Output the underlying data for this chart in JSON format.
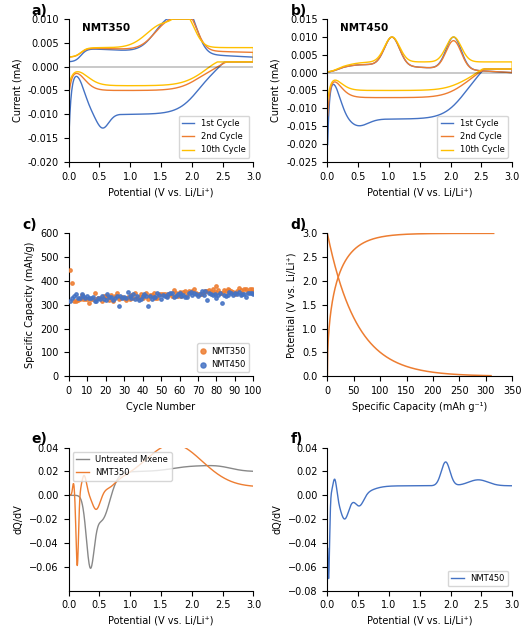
{
  "fig_width": 5.28,
  "fig_height": 6.35,
  "dpi": 100,
  "cv_colors": {
    "1st": "#4472C4",
    "2nd": "#ED7D31",
    "10th": "#FFC000"
  },
  "panel_a": {
    "title": "NMT350",
    "xlim": [
      0,
      3
    ],
    "ylim": [
      -0.02,
      0.01
    ],
    "yticks": [
      -0.02,
      -0.015,
      -0.01,
      -0.005,
      0.0,
      0.005,
      0.01
    ],
    "xlabel": "Potential (V vs. Li/Li⁺)",
    "ylabel": "Current (mA)"
  },
  "panel_b": {
    "title": "NMT450",
    "xlim": [
      0,
      3
    ],
    "ylim": [
      -0.025,
      0.015
    ],
    "yticks": [
      -0.025,
      -0.02,
      -0.015,
      -0.01,
      -0.005,
      0.0,
      0.005,
      0.01,
      0.015
    ],
    "xlabel": "Potential (V vs. Li/Li⁺)",
    "ylabel": "Current (mA)"
  },
  "panel_c": {
    "xlim": [
      0,
      100
    ],
    "ylim": [
      0,
      600
    ],
    "yticks": [
      0,
      100,
      200,
      300,
      400,
      500,
      600
    ],
    "xticks": [
      0,
      10,
      20,
      30,
      40,
      50,
      60,
      70,
      80,
      90,
      100
    ],
    "xlabel": "Cycle Number",
    "ylabel": "Specific Capacity (mAh/g)",
    "nmt450_color": "#4472C4",
    "nmt350_color": "#ED7D31"
  },
  "panel_d": {
    "xlim": [
      0,
      350
    ],
    "ylim": [
      0.0,
      3.0
    ],
    "yticks": [
      0.0,
      0.5,
      1.0,
      1.5,
      2.0,
      2.5,
      3.0
    ],
    "xticks": [
      0,
      50,
      100,
      150,
      200,
      250,
      300,
      350
    ],
    "xlabel": "Specific Capacity (mAh g⁻¹)",
    "ylabel": "Potential (V vs. Li/Li⁺)",
    "line_color": "#ED7D31"
  },
  "panel_e": {
    "xlim": [
      0,
      3
    ],
    "ylim": [
      -0.08,
      0.04
    ],
    "yticks": [
      -0.06,
      -0.04,
      -0.02,
      0.0,
      0.02,
      0.04
    ],
    "xlabel": "Potential (V vs. Li/Li⁺)",
    "ylabel": "dQ/dV",
    "untreated_color": "#888888",
    "nmt350_color": "#ED7D31"
  },
  "panel_f": {
    "xlim": [
      0,
      3
    ],
    "ylim": [
      -0.08,
      0.04
    ],
    "yticks": [
      -0.08,
      -0.06,
      -0.04,
      -0.02,
      0.0,
      0.02,
      0.04
    ],
    "xlabel": "Potential (V vs. Li/Li⁺)",
    "ylabel": "dQ/dV",
    "nmt450_color": "#4472C4"
  }
}
